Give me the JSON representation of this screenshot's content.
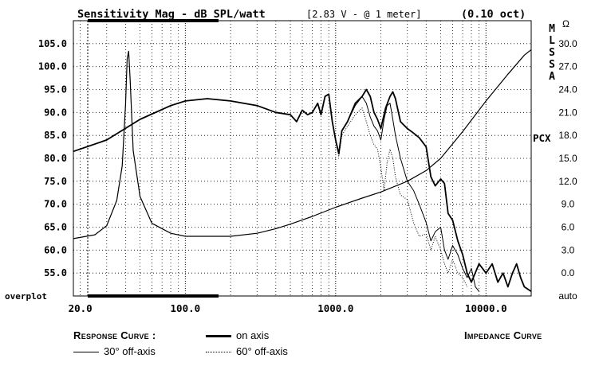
{
  "chart_data": {
    "type": "line",
    "title": "Sensitivity Mag - dB SPL/watt",
    "subtitle": "[2.83 V - @ 1 meter]",
    "smoothing": "(0.10 oct)",
    "x_scale": "log",
    "xlim": [
      18,
      20000
    ],
    "ylim": [
      50,
      110
    ],
    "x_ticks": [
      {
        "value": 20,
        "label": "20.0"
      },
      {
        "value": 100,
        "label": "100.0"
      },
      {
        "value": 1000,
        "label": "1000.0"
      },
      {
        "value": 10000,
        "label": "10000.0"
      }
    ],
    "y_ticks": [
      {
        "value": 105,
        "label": "105.0"
      },
      {
        "value": 100,
        "label": "100.0"
      },
      {
        "value": 95,
        "label": "95.0"
      },
      {
        "value": 90,
        "label": "90.0"
      },
      {
        "value": 85,
        "label": "85.0"
      },
      {
        "value": 80,
        "label": "80.0"
      },
      {
        "value": 75,
        "label": "75.0"
      },
      {
        "value": 70,
        "label": "70.0"
      },
      {
        "value": 65,
        "label": "65.0"
      },
      {
        "value": 60,
        "label": "60.0"
      },
      {
        "value": 55,
        "label": "55.0"
      }
    ],
    "y_bottom_label": "overplot",
    "right_axis": {
      "unit": "Ω",
      "ylim": [
        -3,
        33
      ],
      "ticks": [
        {
          "value": 30,
          "label": "30.0"
        },
        {
          "value": 27,
          "label": "27.0"
        },
        {
          "value": 24,
          "label": "24.0"
        },
        {
          "value": 21,
          "label": "21.0"
        },
        {
          "value": 18,
          "label": "18.0"
        },
        {
          "value": 15,
          "label": "15.0"
        },
        {
          "value": 12,
          "label": "12.0"
        },
        {
          "value": 9,
          "label": "9.0"
        },
        {
          "value": 6,
          "label": "6.0"
        },
        {
          "value": 3,
          "label": "3.0"
        },
        {
          "value": 0,
          "label": "0.0"
        }
      ],
      "bottom_label": "auto"
    },
    "side_letters": [
      "M",
      "L",
      "S",
      "S",
      "A"
    ],
    "side_tag": "PCX",
    "grid": true,
    "series": [
      {
        "name": "on axis",
        "style": "solid-bold",
        "points": [
          [
            18,
            81.5
          ],
          [
            30,
            84
          ],
          [
            50,
            88.5
          ],
          [
            80,
            91.5
          ],
          [
            100,
            92.5
          ],
          [
            140,
            93
          ],
          [
            200,
            92.5
          ],
          [
            300,
            91.5
          ],
          [
            400,
            90
          ],
          [
            500,
            89.5
          ],
          [
            550,
            88
          ],
          [
            600,
            90.5
          ],
          [
            650,
            89.5
          ],
          [
            700,
            90
          ],
          [
            760,
            92
          ],
          [
            800,
            89.5
          ],
          [
            850,
            93.5
          ],
          [
            900,
            94
          ],
          [
            950,
            88
          ],
          [
            1000,
            84
          ],
          [
            1050,
            81
          ],
          [
            1100,
            86
          ],
          [
            1200,
            88
          ],
          [
            1350,
            92
          ],
          [
            1500,
            93.5
          ],
          [
            1600,
            95
          ],
          [
            1700,
            93.5
          ],
          [
            1800,
            90
          ],
          [
            1900,
            88.5
          ],
          [
            2000,
            86.5
          ],
          [
            2150,
            91
          ],
          [
            2300,
            93.5
          ],
          [
            2400,
            94.5
          ],
          [
            2500,
            93
          ],
          [
            2700,
            88
          ],
          [
            3000,
            86.5
          ],
          [
            3300,
            85.5
          ],
          [
            3600,
            84.5
          ],
          [
            4000,
            82.5
          ],
          [
            4300,
            76
          ],
          [
            4600,
            74
          ],
          [
            5000,
            75.5
          ],
          [
            5300,
            74.5
          ],
          [
            5600,
            68
          ],
          [
            6000,
            66.5
          ],
          [
            6500,
            62
          ],
          [
            7000,
            59
          ],
          [
            7500,
            55
          ],
          [
            8000,
            53
          ],
          [
            9000,
            57
          ],
          [
            10000,
            55
          ],
          [
            11000,
            57
          ],
          [
            12000,
            53
          ],
          [
            13000,
            55
          ],
          [
            14000,
            52
          ],
          [
            15000,
            55
          ],
          [
            16000,
            57
          ],
          [
            17000,
            54
          ],
          [
            18000,
            52
          ],
          [
            20000,
            51
          ]
        ]
      },
      {
        "name": "30° off-axis",
        "style": "solid-thin",
        "points": [
          [
            18,
            81.5
          ],
          [
            30,
            84
          ],
          [
            50,
            88.5
          ],
          [
            80,
            91.5
          ],
          [
            100,
            92.5
          ],
          [
            140,
            93
          ],
          [
            200,
            92.5
          ],
          [
            300,
            91.5
          ],
          [
            400,
            90
          ],
          [
            500,
            89.5
          ],
          [
            550,
            88
          ],
          [
            600,
            90.5
          ],
          [
            650,
            89.5
          ],
          [
            700,
            90
          ],
          [
            760,
            92
          ],
          [
            800,
            89.5
          ],
          [
            850,
            93.5
          ],
          [
            900,
            94
          ],
          [
            950,
            88
          ],
          [
            1000,
            84
          ],
          [
            1050,
            81
          ],
          [
            1100,
            86
          ],
          [
            1200,
            88
          ],
          [
            1350,
            91.5
          ],
          [
            1500,
            93.5
          ],
          [
            1600,
            92
          ],
          [
            1700,
            89
          ],
          [
            1800,
            87
          ],
          [
            1900,
            86
          ],
          [
            2000,
            84
          ],
          [
            2100,
            88.5
          ],
          [
            2200,
            91.5
          ],
          [
            2300,
            92
          ],
          [
            2400,
            88.5
          ],
          [
            2500,
            85
          ],
          [
            2700,
            80
          ],
          [
            3000,
            75
          ],
          [
            3300,
            73
          ],
          [
            3600,
            70
          ],
          [
            4000,
            66
          ],
          [
            4300,
            62
          ],
          [
            4600,
            64
          ],
          [
            5000,
            65
          ],
          [
            5300,
            60
          ],
          [
            5600,
            58
          ],
          [
            6000,
            61
          ],
          [
            6500,
            59
          ],
          [
            7000,
            56
          ],
          [
            7500,
            54
          ],
          [
            8000,
            56
          ],
          [
            8500,
            52
          ],
          [
            9000,
            51
          ]
        ]
      },
      {
        "name": "60° off-axis",
        "style": "dotted",
        "points": [
          [
            18,
            81.5
          ],
          [
            30,
            84
          ],
          [
            50,
            88.5
          ],
          [
            80,
            91.5
          ],
          [
            100,
            92.5
          ],
          [
            140,
            93
          ],
          [
            200,
            92.5
          ],
          [
            300,
            91.5
          ],
          [
            400,
            90
          ],
          [
            500,
            89.5
          ],
          [
            550,
            88
          ],
          [
            600,
            90.5
          ],
          [
            650,
            89.5
          ],
          [
            700,
            90
          ],
          [
            760,
            92
          ],
          [
            800,
            89.5
          ],
          [
            850,
            93.5
          ],
          [
            900,
            94
          ],
          [
            950,
            88
          ],
          [
            1000,
            84
          ],
          [
            1050,
            80.5
          ],
          [
            1100,
            85
          ],
          [
            1200,
            87
          ],
          [
            1350,
            89.5
          ],
          [
            1500,
            91
          ],
          [
            1600,
            88
          ],
          [
            1700,
            85
          ],
          [
            1800,
            83
          ],
          [
            1900,
            82
          ],
          [
            2000,
            78
          ],
          [
            2100,
            73
          ],
          [
            2200,
            79
          ],
          [
            2300,
            82
          ],
          [
            2400,
            80
          ],
          [
            2500,
            76
          ],
          [
            2700,
            72
          ],
          [
            3000,
            71
          ],
          [
            3300,
            66
          ],
          [
            3600,
            63
          ],
          [
            4000,
            63.5
          ],
          [
            4300,
            60
          ],
          [
            4600,
            63
          ],
          [
            5000,
            60
          ],
          [
            5300,
            57
          ],
          [
            5600,
            55
          ],
          [
            6000,
            58
          ],
          [
            6500,
            55
          ],
          [
            7000,
            54
          ],
          [
            7500,
            52
          ]
        ]
      },
      {
        "name": "IMPEDANCE CURVE",
        "style": "solid-impedance",
        "axis": "right",
        "points": [
          [
            18,
            4.5
          ],
          [
            25,
            5
          ],
          [
            30,
            6.2
          ],
          [
            35,
            9.5
          ],
          [
            38,
            14
          ],
          [
            40,
            22
          ],
          [
            41,
            28
          ],
          [
            42,
            29
          ],
          [
            43,
            25
          ],
          [
            45,
            16
          ],
          [
            50,
            10
          ],
          [
            60,
            6.5
          ],
          [
            80,
            5.2
          ],
          [
            100,
            4.8
          ],
          [
            200,
            4.8
          ],
          [
            300,
            5.2
          ],
          [
            400,
            5.8
          ],
          [
            500,
            6.4
          ],
          [
            700,
            7.4
          ],
          [
            1000,
            8.6
          ],
          [
            1500,
            9.8
          ],
          [
            2000,
            10.6
          ],
          [
            3000,
            12
          ],
          [
            4000,
            13.4
          ],
          [
            5000,
            15
          ],
          [
            7000,
            18.5
          ],
          [
            10000,
            22.5
          ],
          [
            14000,
            26
          ],
          [
            18000,
            28.5
          ],
          [
            20000,
            29.2
          ]
        ]
      }
    ]
  },
  "legend": {
    "response_label": "Response Curve :",
    "on_axis": "on axis",
    "off30": "30° off-axis",
    "off60": "60° off-axis",
    "impedance_label": "Impedance Curve"
  }
}
